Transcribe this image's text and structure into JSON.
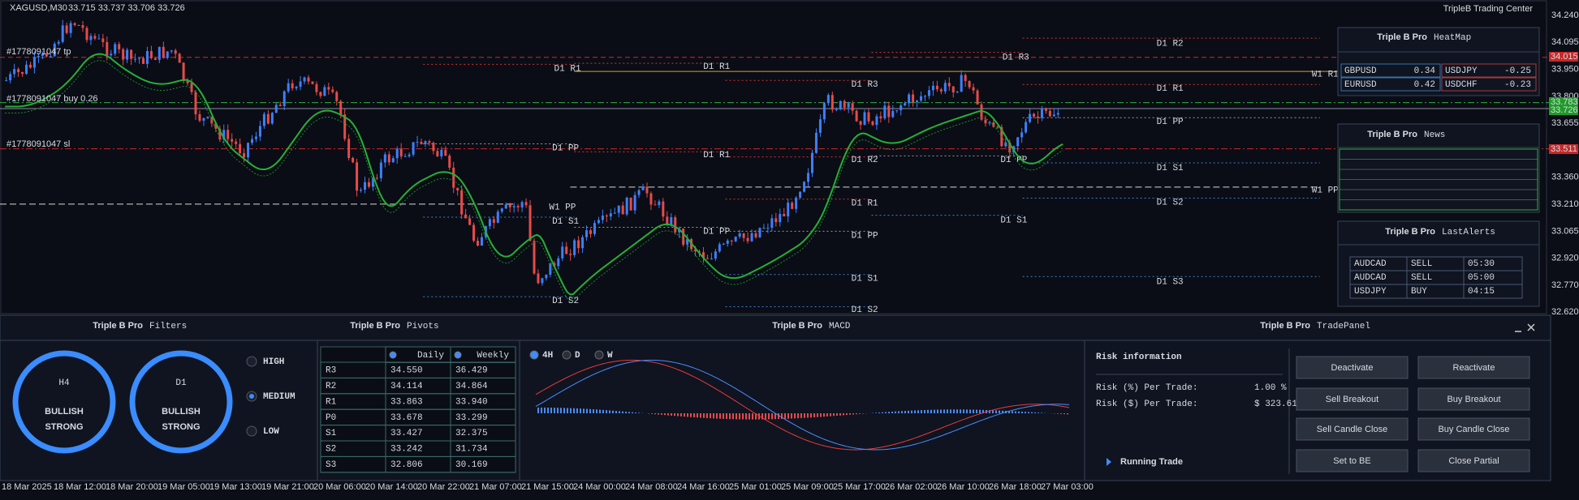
{
  "header": {
    "symbol": "XAGUSD,M30",
    "ohlc": "33.715 33.737 33.706 33.726",
    "brand": "TripleB Trading Center"
  },
  "price_axis": [
    "34.240",
    "34.095",
    "33.950",
    "33.800",
    "33.655",
    "33.510",
    "33.360",
    "33.210",
    "33.065",
    "32.920",
    "32.770",
    "32.620"
  ],
  "price_tags": [
    "34.015",
    "33.783",
    "33.726",
    "33.511"
  ],
  "time_axis": [
    "18 Mar 2025",
    "18 Mar 12:00",
    "18 Mar 20:00",
    "19 Mar 05:00",
    "19 Mar 13:00",
    "19 Mar 21:00",
    "20 Mar 06:00",
    "20 Mar 14:00",
    "20 Mar 22:00",
    "21 Mar 07:00",
    "21 Mar 15:00",
    "24 Mar 00:00",
    "24 Mar 08:00",
    "24 Mar 16:00",
    "25 Mar 01:00",
    "25 Mar 09:00",
    "25 Mar 17:00",
    "26 Mar 02:00",
    "26 Mar 10:00",
    "26 Mar 18:00",
    "27 Mar 03:00"
  ],
  "orders": [
    "#1778091047 tp",
    "#1778091047 buy 0.26",
    "#1778091047 sl"
  ],
  "pivot_labels": [
    "D1 R2",
    "D1 R3",
    "D1 R1",
    "D1 R1",
    "W1 R1",
    "D1 R3",
    "D1 R1",
    "D1 PP",
    "D1 PP",
    "D1 R1",
    "D1 R2",
    "D1 PP",
    "D1 S1",
    "W1 PP",
    "D1 R1",
    "D1 S2",
    "W1 PP",
    "D1 S1",
    "D1 S1",
    "D1 PP",
    "D1 PP",
    "D1 S1",
    "D1 S3",
    "D1 S2",
    "D1 S2"
  ],
  "heatmap": {
    "brand": "Triple B Pro",
    "title": "HeatMap",
    "rows": [
      [
        "GBPUSD",
        "0.34",
        "USDJPY",
        "-0.25"
      ],
      [
        "EURUSD",
        "0.42",
        "USDCHF",
        "-0.23"
      ]
    ]
  },
  "news": {
    "brand": "Triple B Pro",
    "title": "News"
  },
  "alerts": {
    "brand": "Triple B Pro",
    "title": "LastAlerts",
    "rows": [
      [
        "AUDCAD",
        "SELL",
        "05:30"
      ],
      [
        "AUDCAD",
        "SELL",
        "05:00"
      ],
      [
        "USDJPY",
        "BUY",
        "04:15"
      ]
    ]
  },
  "filters": {
    "brand": "Triple B Pro",
    "title": "Filters",
    "gauges": [
      {
        "tf": "H4",
        "state": [
          "BULLISH",
          "STRONG"
        ]
      },
      {
        "tf": "D1",
        "state": [
          "BULLISH",
          "STRONG"
        ]
      }
    ],
    "levels": [
      "HIGH",
      "MEDIUM",
      "LOW"
    ]
  },
  "pivots": {
    "brand": "Triple B Pro",
    "title": "Pivots",
    "headers": [
      "Daily",
      "Weekly"
    ],
    "rows": [
      [
        "R3",
        "34.550",
        "36.429"
      ],
      [
        "R2",
        "34.114",
        "34.864"
      ],
      [
        "R1",
        "33.863",
        "33.940"
      ],
      [
        "P0",
        "33.678",
        "33.299"
      ],
      [
        "S1",
        "33.427",
        "32.375"
      ],
      [
        "S2",
        "33.242",
        "31.734"
      ],
      [
        "S3",
        "32.806",
        "30.169"
      ]
    ]
  },
  "macd": {
    "brand": "Triple B Pro",
    "title": "MACD",
    "timeframes": [
      "4H",
      "D",
      "W"
    ]
  },
  "trade_panel": {
    "brand": "Triple B Pro",
    "title": "TradePanel",
    "heading": "Risk information",
    "risk_pct_label": "Risk (%) Per Trade:",
    "risk_pct": "1.00 %",
    "risk_usd_label": "Risk ($) Per Trade:",
    "risk_usd": "$ 323.61",
    "running": "Running Trade",
    "buttons": [
      "Deactivate",
      "Reactivate",
      "Sell Breakout",
      "Buy Breakout",
      "Sell Candle Close",
      "Buy Candle Close",
      "Set to BE",
      "Close Partial"
    ]
  }
}
